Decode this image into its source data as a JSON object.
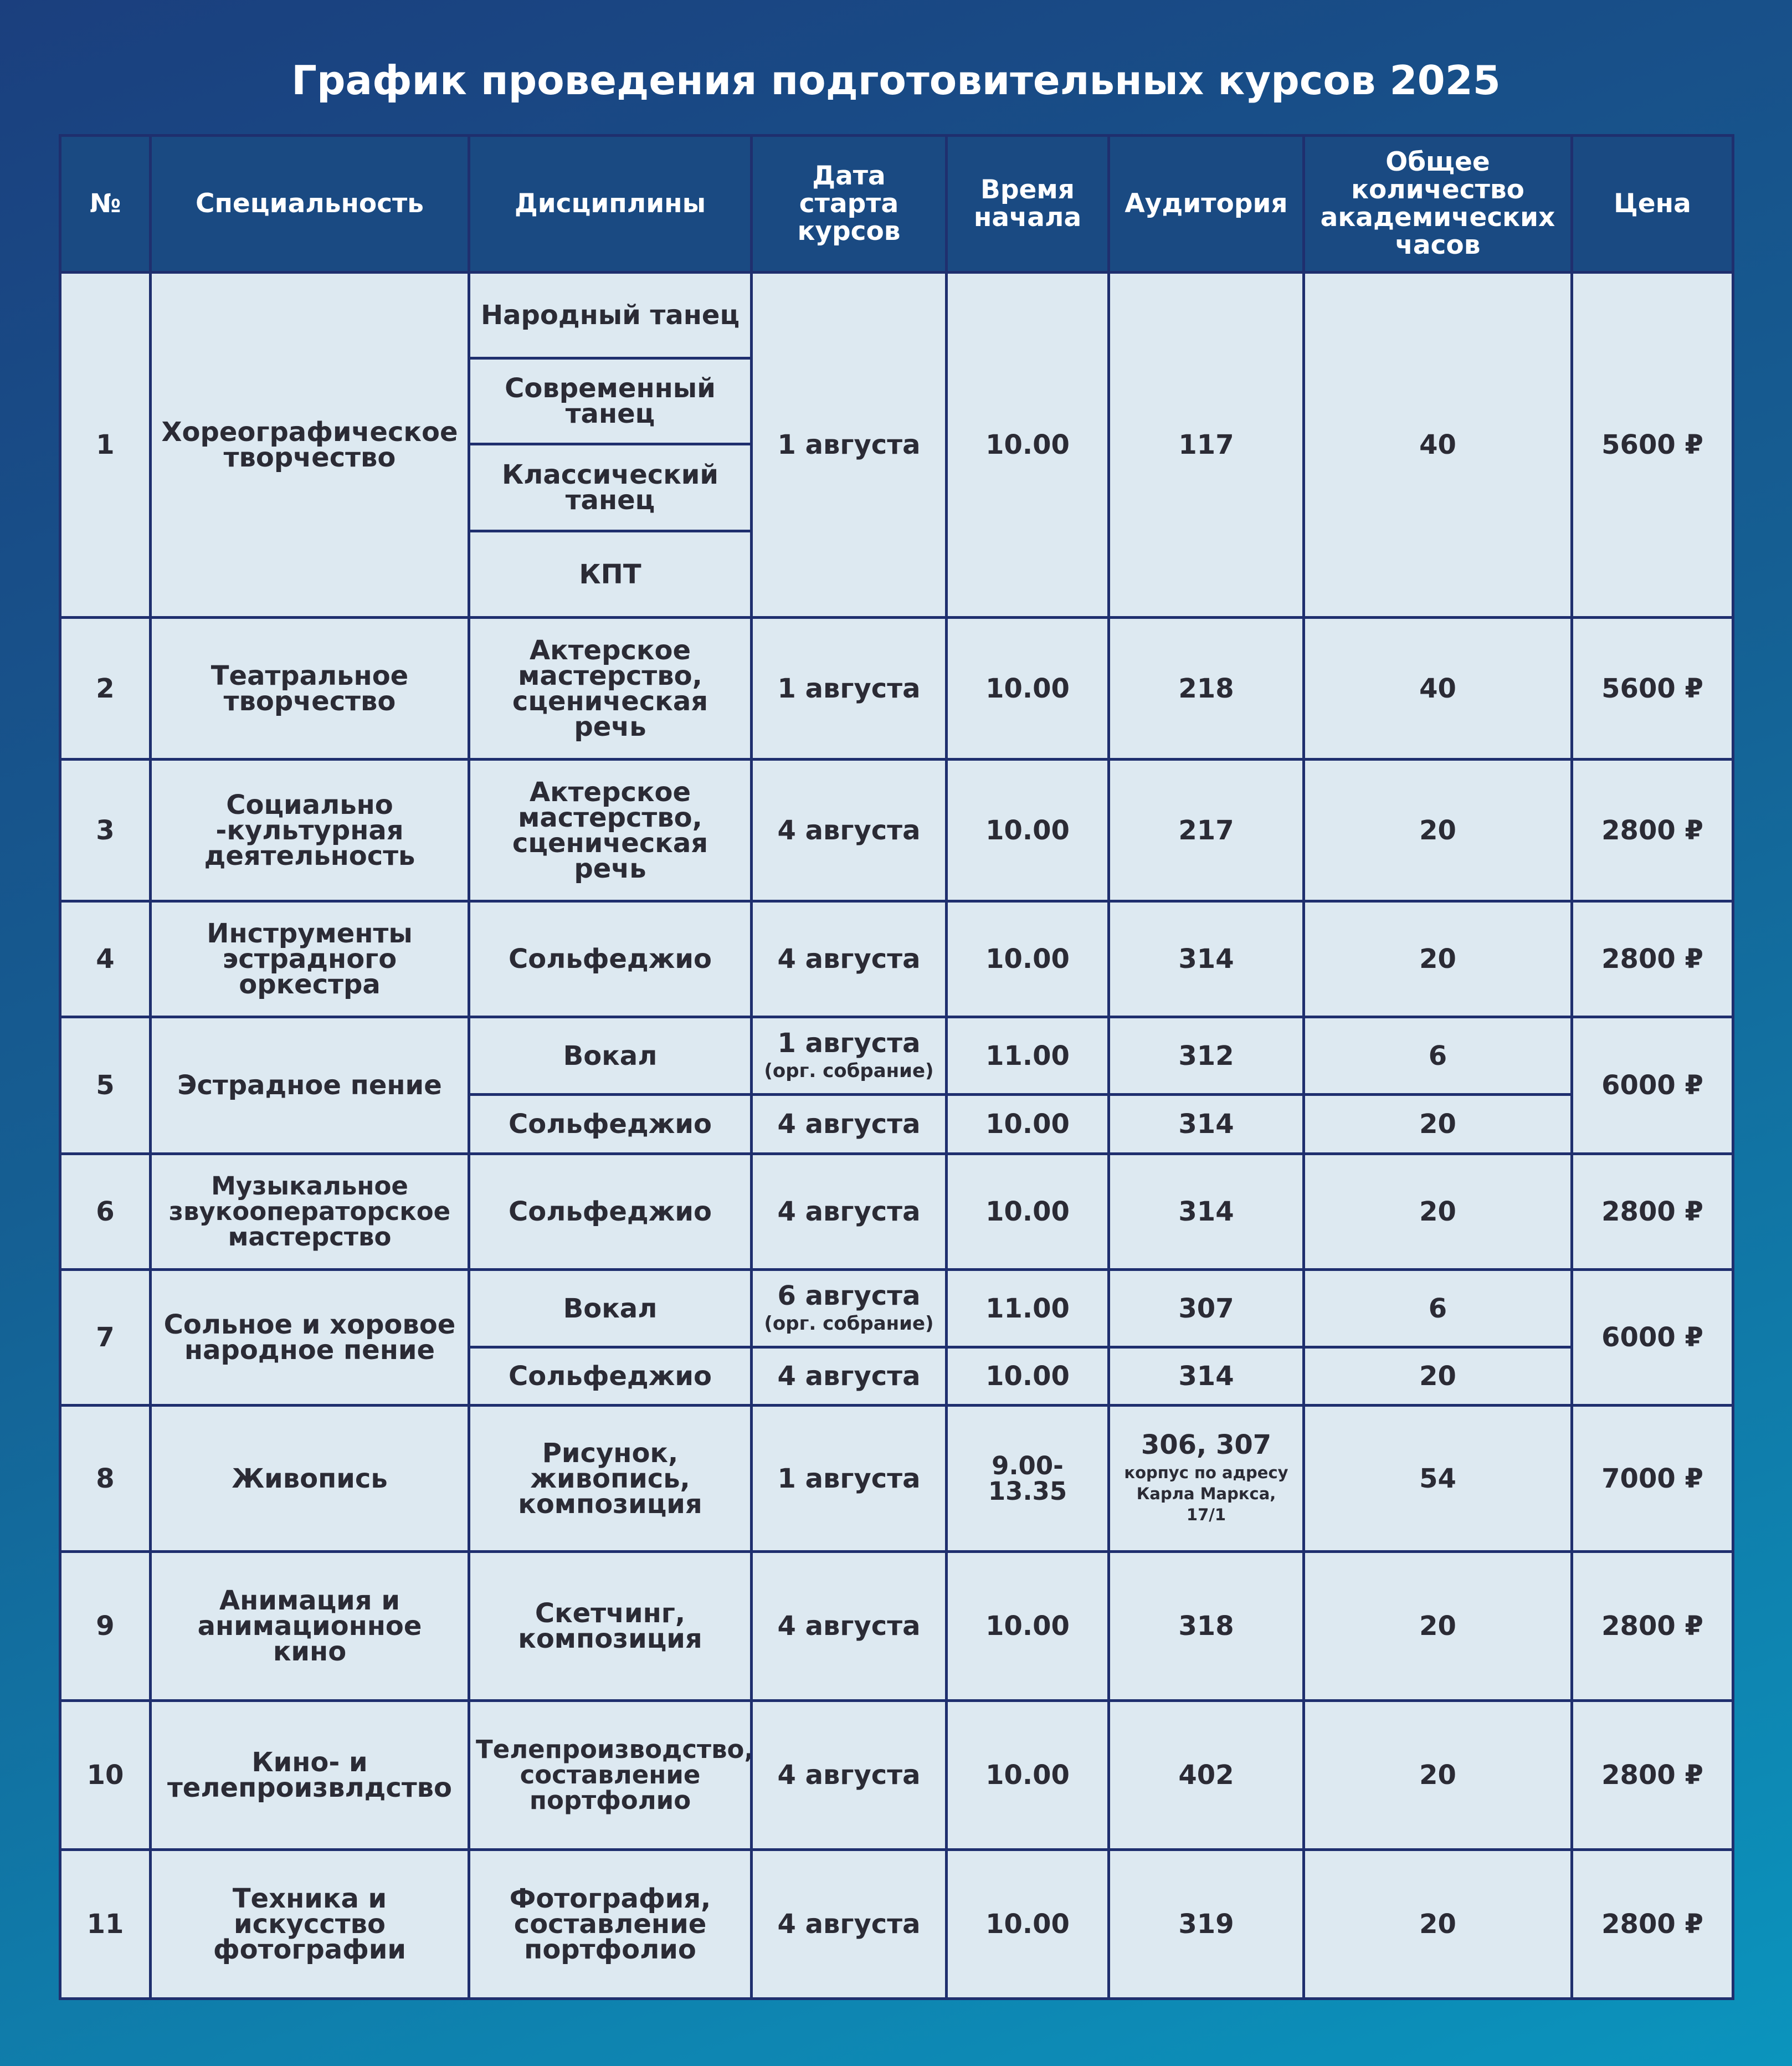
{
  "title": "График проведения подготовительных курсов 2025",
  "headers": {
    "num": "№",
    "specialty": "Специальность",
    "disciplines": "Дисциплины",
    "start_date": "Дата старта курсов",
    "start_time": "Время начала",
    "room": "Аудитория",
    "hours": "Общее количество академических часов",
    "price": "Цена"
  },
  "rows": [
    {
      "num": "1",
      "specialty": "Хореографическое творчество",
      "disciplines": [
        "Народный танец",
        "Современный танец",
        "Классический танец",
        "КПТ"
      ],
      "date": "1 августа",
      "time": "10.00",
      "room": "117",
      "hours": "40",
      "price": "5600 ₽"
    },
    {
      "num": "2",
      "specialty": "Театральное творчество",
      "discipline": "Актерское мастерство, сценическая речь",
      "date": "1 августа",
      "time": "10.00",
      "room": "218",
      "hours": "40",
      "price": "5600 ₽"
    },
    {
      "num": "3",
      "specialty": "Социально -культурная деятельность",
      "discipline": "Актерское мастерство, сценическая речь",
      "date": "4 августа",
      "time": "10.00",
      "room": "217",
      "hours": "20",
      "price": "2800 ₽"
    },
    {
      "num": "4",
      "specialty": "Инструменты эстрадного оркестра",
      "discipline": "Сольфеджио",
      "date": "4 августа",
      "time": "10.00",
      "room": "314",
      "hours": "20",
      "price": "2800 ₽"
    },
    {
      "num": "5",
      "specialty": "Эстрадное пение",
      "sub": [
        {
          "discipline": "Вокал",
          "date": "1 августа",
          "note": "(орг. собрание)",
          "time": "11.00",
          "room": "312",
          "hours": "6"
        },
        {
          "discipline": "Сольфеджио",
          "date": "4 августа",
          "time": "10.00",
          "room": "314",
          "hours": "20"
        }
      ],
      "price": "6000 ₽"
    },
    {
      "num": "6",
      "specialty": "Музыкальное звукооператорское мастерство",
      "discipline": "Сольфеджио",
      "date": "4 августа",
      "time": "10.00",
      "room": "314",
      "hours": "20",
      "price": "2800 ₽"
    },
    {
      "num": "7",
      "specialty": "Сольное и хоровое народное пение",
      "sub": [
        {
          "discipline": "Вокал",
          "date": "6 августа",
          "note": "(орг. собрание)",
          "time": "11.00",
          "room": "307",
          "hours": "6"
        },
        {
          "discipline": "Сольфеджио",
          "date": "4 августа",
          "time": "10.00",
          "room": "314",
          "hours": "20"
        }
      ],
      "price": "6000 ₽"
    },
    {
      "num": "8",
      "specialty": "Живопись",
      "discipline": "Рисунок, живопись, композиция",
      "date": "1 августа",
      "time": "9.00-13.35",
      "room": "306, 307",
      "room_note": "корпус по адресу Карла Маркса, 17/1",
      "hours": "54",
      "price": "7000 ₽"
    },
    {
      "num": "9",
      "specialty": "Анимация и анимационное кино",
      "discipline": "Скетчинг, композиция",
      "date": "4 августа",
      "time": "10.00",
      "room": "318",
      "hours": "20",
      "price": "2800 ₽"
    },
    {
      "num": "10",
      "specialty": "Кино- и телепроизвлдство",
      "discipline": "Телепроизводство, составление портфолио",
      "date": "4 августа",
      "time": "10.00",
      "room": "402",
      "hours": "20",
      "price": "2800 ₽"
    },
    {
      "num": "11",
      "specialty": "Техника и искусство фотографии",
      "discipline": "Фотография, составление портфолио",
      "date": "4 августа",
      "time": "10.00",
      "room": "319",
      "hours": "20",
      "price": "2800 ₽"
    }
  ]
}
